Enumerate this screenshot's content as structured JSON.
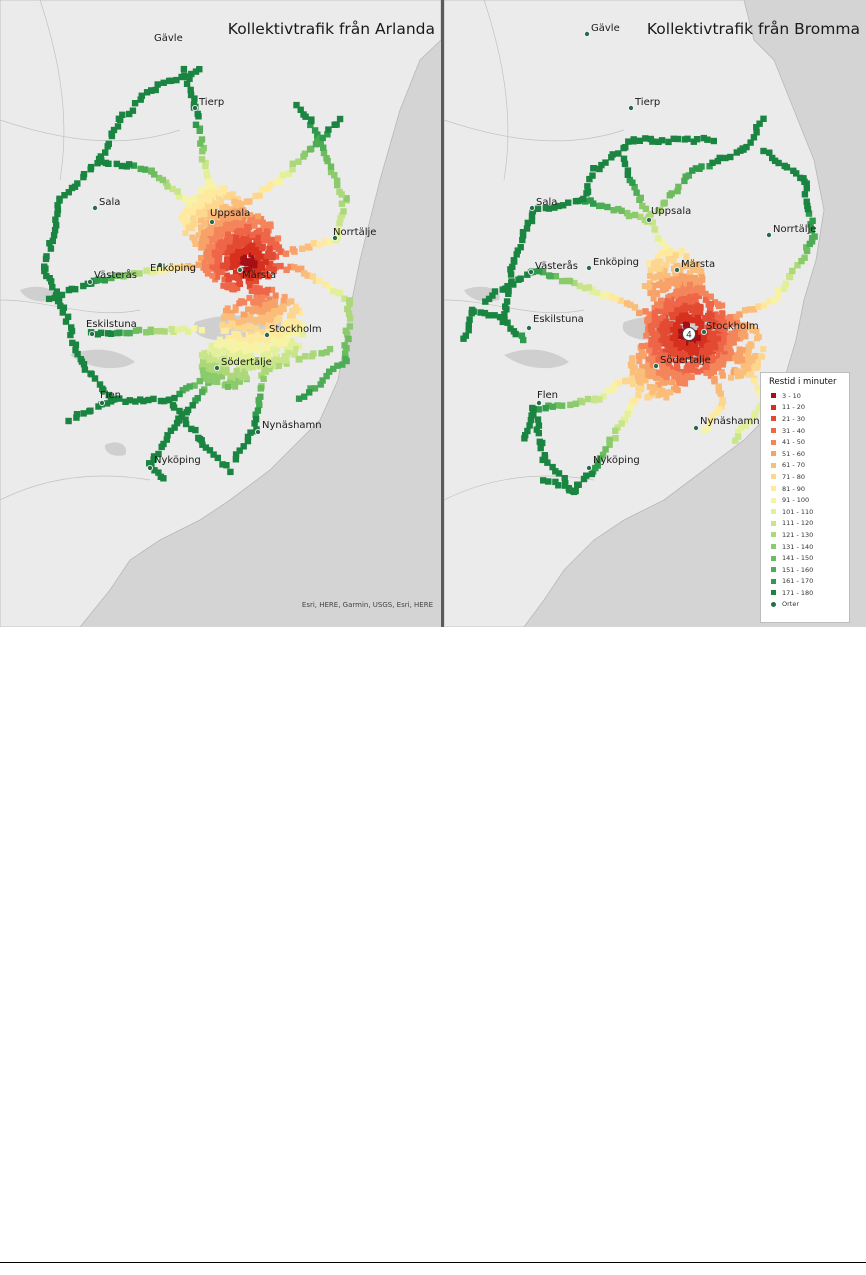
{
  "maps": [
    {
      "title": "Kollektivtrafik från Arlanda",
      "attribution": "Esri, HERE, Garmin, USGS, Esri, HERE",
      "cities": [
        {
          "name": "Gävle",
          "dot": false
        },
        {
          "name": "Tierp",
          "dot": true
        },
        {
          "name": "Sala",
          "dot": true
        },
        {
          "name": "Uppsala",
          "dot": true
        },
        {
          "name": "Norrtälje",
          "dot": true
        },
        {
          "name": "Enköping",
          "dot": true
        },
        {
          "name": "Märsta",
          "dot": true
        },
        {
          "name": "Västerås",
          "dot": true
        },
        {
          "name": "Eskilstuna",
          "dot": true
        },
        {
          "name": "Stockholm",
          "dot": true
        },
        {
          "name": "Södertälje",
          "dot": true
        },
        {
          "name": "Flen",
          "dot": true
        },
        {
          "name": "Nynäshamn",
          "dot": true
        },
        {
          "name": "Nyköping",
          "dot": true
        }
      ]
    },
    {
      "title": "Kollektivtrafik från Bromma",
      "origin_marker": "4",
      "cities": [
        {
          "name": "Gävle",
          "dot": true
        },
        {
          "name": "Tierp",
          "dot": true
        },
        {
          "name": "Sala",
          "dot": true
        },
        {
          "name": "Uppsala",
          "dot": true
        },
        {
          "name": "Norrtälje",
          "dot": true
        },
        {
          "name": "Västerås",
          "dot": true
        },
        {
          "name": "Enköping",
          "dot": true
        },
        {
          "name": "Märsta",
          "dot": true
        },
        {
          "name": "Eskilstuna",
          "dot": true
        },
        {
          "name": "Stockholm",
          "dot": true
        },
        {
          "name": "Södertälje",
          "dot": true
        },
        {
          "name": "Flen",
          "dot": true
        },
        {
          "name": "Nynäshamn",
          "dot": true
        },
        {
          "name": "Nyköping",
          "dot": true
        }
      ]
    }
  ],
  "legend": {
    "title": "Restid i minuter",
    "classes": [
      {
        "label": "3 - 10",
        "color": "#a50f15"
      },
      {
        "label": "11 - 20",
        "color": "#d7301f"
      },
      {
        "label": "21 - 30",
        "color": "#e34a33"
      },
      {
        "label": "31 - 40",
        "color": "#ef6548"
      },
      {
        "label": "41 - 50",
        "color": "#f4845a"
      },
      {
        "label": "51 - 60",
        "color": "#f7a268"
      },
      {
        "label": "61 - 70",
        "color": "#fbbd7a"
      },
      {
        "label": "71 - 80",
        "color": "#fdd78e"
      },
      {
        "label": "81 - 90",
        "color": "#fee99c"
      },
      {
        "label": "91 - 100",
        "color": "#f7f3a4"
      },
      {
        "label": "101 - 110",
        "color": "#e3f09a"
      },
      {
        "label": "111 - 120",
        "color": "#c9e58a"
      },
      {
        "label": "121 - 130",
        "color": "#acd87a"
      },
      {
        "label": "131 - 140",
        "color": "#8ccb6b"
      },
      {
        "label": "141 - 150",
        "color": "#6dbd5f"
      },
      {
        "label": "151 - 160",
        "color": "#4dac55"
      },
      {
        "label": "161 - 170",
        "color": "#2e9a4b"
      },
      {
        "label": "171 - 180",
        "color": "#1a8441"
      },
      {
        "label": "Orter",
        "color": "#2b6a4c"
      }
    ]
  }
}
